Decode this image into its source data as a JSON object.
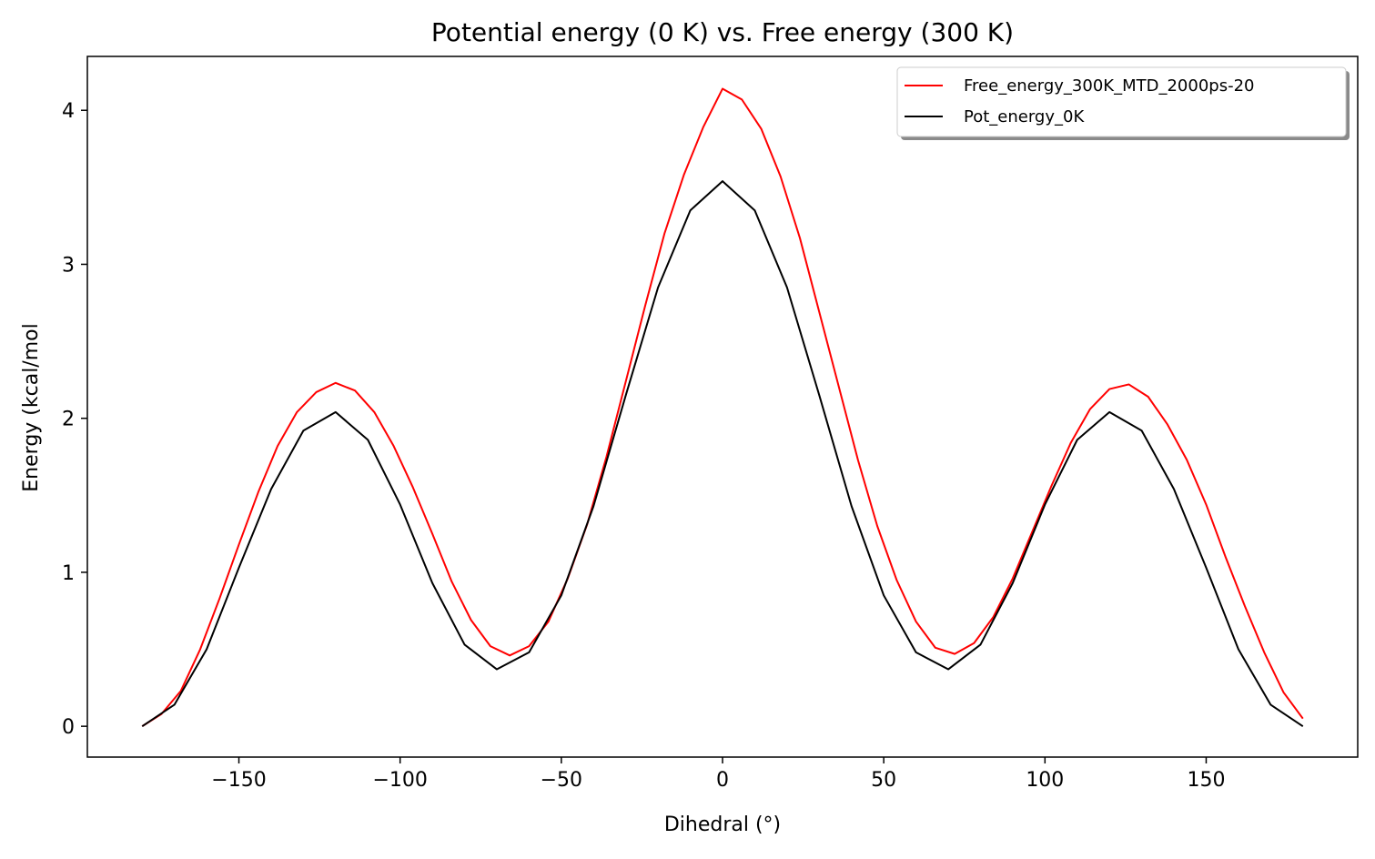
{
  "chart_data": {
    "type": "line",
    "title": "Potential energy (0 K) vs. Free energy (300 K)",
    "xlabel": "Dihedral (°)",
    "ylabel": "Energy (kcal/mol",
    "xlim": [
      -197,
      197
    ],
    "ylim": [
      -0.2,
      4.35
    ],
    "xticks": [
      -150,
      -100,
      -50,
      0,
      50,
      100,
      150
    ],
    "xtick_labels": [
      "−150",
      "−100",
      "−50",
      "0",
      "50",
      "100",
      "150"
    ],
    "yticks": [
      0,
      1,
      2,
      3,
      4
    ],
    "ytick_labels": [
      "0",
      "1",
      "2",
      "3",
      "4"
    ],
    "grid": false,
    "legend_position": "top-right",
    "series": [
      {
        "name": "Free_energy_300K_MTD_2000ps-20",
        "color": "#ff0000",
        "x": [
          -180,
          -174,
          -168,
          -162,
          -156,
          -150,
          -144,
          -138,
          -132,
          -126,
          -120,
          -114,
          -108,
          -102,
          -96,
          -90,
          -84,
          -78,
          -72,
          -66,
          -60,
          -54,
          -48,
          -42,
          -36,
          -30,
          -24,
          -18,
          -12,
          -6,
          0,
          6,
          12,
          18,
          24,
          30,
          36,
          42,
          48,
          54,
          60,
          66,
          72,
          78,
          84,
          90,
          96,
          102,
          108,
          114,
          120,
          126,
          132,
          138,
          144,
          150,
          156,
          162,
          168,
          174,
          180
        ],
        "y": [
          0.0,
          0.08,
          0.23,
          0.5,
          0.83,
          1.18,
          1.52,
          1.82,
          2.04,
          2.17,
          2.23,
          2.18,
          2.04,
          1.82,
          1.55,
          1.25,
          0.94,
          0.69,
          0.52,
          0.46,
          0.52,
          0.68,
          0.96,
          1.31,
          1.75,
          2.24,
          2.73,
          3.2,
          3.58,
          3.89,
          4.14,
          4.07,
          3.88,
          3.57,
          3.17,
          2.69,
          2.21,
          1.73,
          1.3,
          0.95,
          0.68,
          0.51,
          0.47,
          0.54,
          0.71,
          0.96,
          1.26,
          1.56,
          1.84,
          2.06,
          2.19,
          2.22,
          2.14,
          1.96,
          1.73,
          1.44,
          1.1,
          0.78,
          0.48,
          0.22,
          0.05
        ]
      },
      {
        "name": "Pot_energy_0K",
        "color": "#000000",
        "x": [
          -180,
          -170,
          -160,
          -150,
          -140,
          -130,
          -120,
          -110,
          -100,
          -90,
          -80,
          -70,
          -60,
          -50,
          -40,
          -30,
          -20,
          -10,
          0,
          10,
          20,
          30,
          40,
          50,
          60,
          70,
          80,
          90,
          100,
          110,
          120,
          130,
          140,
          150,
          160,
          170,
          180
        ],
        "y": [
          0.0,
          0.14,
          0.5,
          1.03,
          1.54,
          1.92,
          2.04,
          1.86,
          1.44,
          0.93,
          0.53,
          0.37,
          0.48,
          0.85,
          1.43,
          2.15,
          2.85,
          3.35,
          3.54,
          3.35,
          2.85,
          2.15,
          1.43,
          0.85,
          0.48,
          0.37,
          0.53,
          0.93,
          1.44,
          1.86,
          2.04,
          1.92,
          1.54,
          1.03,
          0.5,
          0.14,
          0.0
        ]
      }
    ]
  }
}
